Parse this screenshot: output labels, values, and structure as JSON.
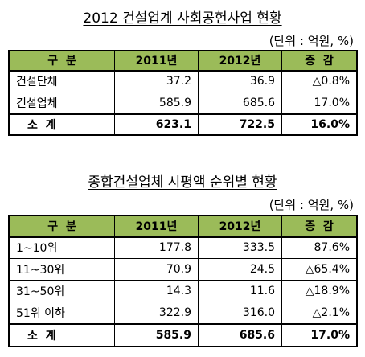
{
  "section1": {
    "title": "2012 건설업계 사회공헌사업 현황",
    "unit": "(단위 : 억원, %)",
    "headers": [
      "구  분",
      "2011년",
      "2012년",
      "증  감"
    ],
    "rows": [
      {
        "label": "건설단체",
        "y2011": "37.2",
        "y2012": "36.9",
        "change": "△0.8%"
      },
      {
        "label": "건설업체",
        "y2011": "585.9",
        "y2012": "685.6",
        "change": "17.0%"
      }
    ],
    "total": {
      "label": "소  계",
      "y2011": "623.1",
      "y2012": "722.5",
      "change": "16.0%"
    }
  },
  "section2": {
    "title": "종합건설업체 시평액 순위별 현황",
    "unit": "(단위 : 억원, %)",
    "headers": [
      "구  분",
      "2011년",
      "2012년",
      "증  감"
    ],
    "rows": [
      {
        "label": "1~10위",
        "y2011": "177.8",
        "y2012": "333.5",
        "change": "87.6%"
      },
      {
        "label": "11~30위",
        "y2011": "70.9",
        "y2012": "24.5",
        "change": "△65.4%"
      },
      {
        "label": "31~50위",
        "y2011": "14.3",
        "y2012": "11.6",
        "change": "△18.9%"
      },
      {
        "label": "51위 이하",
        "y2011": "322.9",
        "y2012": "316.0",
        "change": "△2.1%"
      }
    ],
    "total": {
      "label": "소  계",
      "y2011": "585.9",
      "y2012": "685.6",
      "change": "17.0%"
    }
  },
  "colors": {
    "header_bg": "#9bbb59",
    "border": "#000000"
  }
}
